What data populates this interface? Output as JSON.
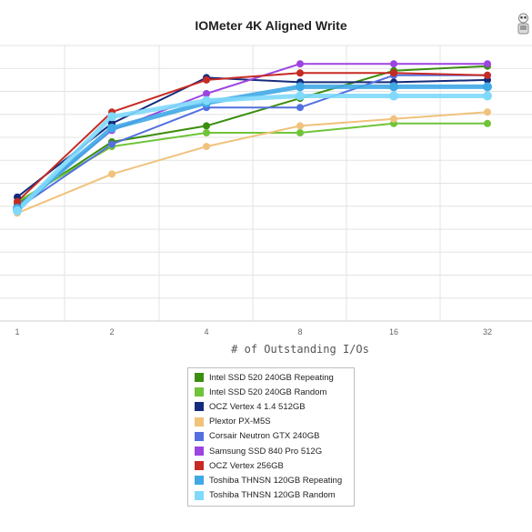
{
  "chart_data": {
    "type": "line",
    "title": "IOMeter 4K Aligned Write",
    "xlabel": "# of Outstanding I/Os",
    "ylabel": "",
    "x": [
      "1",
      "2",
      "4",
      "8",
      "16",
      "32"
    ],
    "ylim": [
      0,
      12
    ],
    "grid": true,
    "legend_position": "bottom-center",
    "series": [
      {
        "name": "Intel SSD 520 240GB Repeating",
        "color": "#3b8e0f",
        "values": [
          5.1,
          7.8,
          8.5,
          9.7,
          10.9,
          11.1
        ]
      },
      {
        "name": "Intel SSD 520 240GB Random",
        "color": "#6fc43a",
        "values": [
          5.2,
          7.6,
          8.2,
          8.2,
          8.6,
          8.6
        ]
      },
      {
        "name": "OCZ Vertex 4 1.4 512GB",
        "color": "#152b7b",
        "values": [
          5.4,
          8.6,
          10.6,
          10.4,
          10.4,
          10.5
        ]
      },
      {
        "name": "Plextor PX-M5S",
        "color": "#f0c27b",
        "values": [
          4.7,
          6.4,
          7.6,
          8.5,
          8.8,
          9.1
        ]
      },
      {
        "name": "Corsair Neutron GTX 240GB",
        "color": "#5470e0",
        "values": [
          4.9,
          7.7,
          9.3,
          9.3,
          10.7,
          10.7
        ]
      },
      {
        "name": "Samsung SSD 840 Pro 512G",
        "color": "#9c44e0",
        "values": [
          5.0,
          8.3,
          9.9,
          11.2,
          11.2,
          11.2
        ]
      },
      {
        "name": "OCZ Vertex 256GB",
        "color": "#c62a24",
        "values": [
          5.2,
          9.1,
          10.5,
          10.8,
          10.8,
          10.7
        ]
      },
      {
        "name": "Toshiba THNSN 120GB Repeating",
        "color": "#3fa9e6",
        "values": [
          4.9,
          8.4,
          9.5,
          10.2,
          10.2,
          10.2
        ]
      },
      {
        "name": "Toshiba THNSN 120GB Random",
        "color": "#7fd9fb",
        "values": [
          4.8,
          8.9,
          9.6,
          9.8,
          9.8,
          9.8
        ]
      }
    ]
  }
}
